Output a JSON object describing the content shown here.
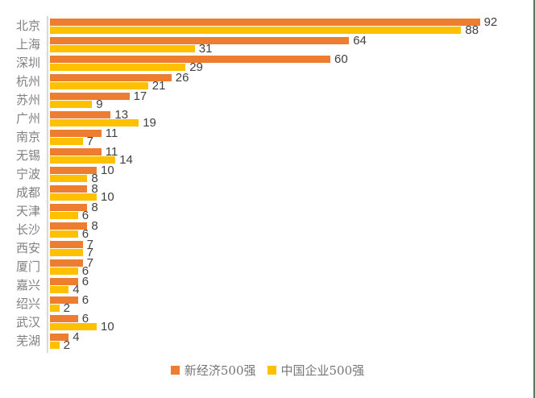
{
  "chart_data": {
    "type": "bar",
    "orientation": "horizontal",
    "title": "",
    "xlabel": "",
    "ylabel": "",
    "xlim": [
      0,
      100
    ],
    "grid": false,
    "value_labels": true,
    "legend_position": "bottom",
    "categories": [
      "北京",
      "上海",
      "深圳",
      "杭州",
      "苏州",
      "广州",
      "南京",
      "无锡",
      "宁波",
      "成都",
      "天津",
      "长沙",
      "西安",
      "厦门",
      "嘉兴",
      "绍兴",
      "武汉",
      "芜湖"
    ],
    "series": [
      {
        "name": "新经济500强",
        "color": "#ED7D31",
        "values": [
          92,
          64,
          60,
          26,
          17,
          13,
          11,
          11,
          10,
          8,
          8,
          8,
          7,
          7,
          6,
          6,
          6,
          4
        ]
      },
      {
        "name": "中国企业500强",
        "color": "#FFC000",
        "values": [
          88,
          31,
          29,
          21,
          9,
          19,
          7,
          14,
          8,
          10,
          6,
          6,
          7,
          6,
          4,
          2,
          10,
          2
        ]
      }
    ],
    "axis_color": "#D9D9D9",
    "category_label_color": "#808080",
    "value_label_color": "#404040"
  }
}
